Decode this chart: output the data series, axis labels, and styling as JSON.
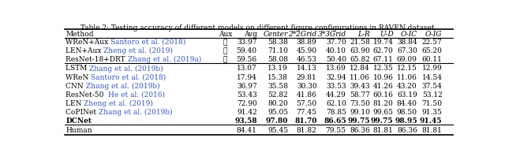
{
  "title": "Table 2: Testing accuracy of different models on different figure configurations in RAVEN dataset.",
  "columns": [
    "Method",
    "Aux",
    "Avg",
    "Center",
    "2*2Grid",
    "3*3Grid",
    "L-R",
    "U-D",
    "O-IC",
    "O-IG"
  ],
  "col_italic": [
    false,
    false,
    false,
    true,
    true,
    true,
    true,
    true,
    true,
    true
  ],
  "rows": [
    {
      "method_black": "WReN+Aux ",
      "method_blue": "Santoro et al. (2018)",
      "method_bold": false,
      "aux": "✓",
      "values": [
        "33.97",
        "58.38",
        "38.89",
        "37.70",
        "21.58",
        "19.74",
        "38.84",
        "22.57"
      ],
      "bold_vals": [
        false,
        false,
        false,
        false,
        false,
        false,
        false,
        false
      ],
      "group": 1
    },
    {
      "method_black": "LEN+Aux ",
      "method_blue": "Zheng et al. (2019)",
      "method_bold": false,
      "aux": "✓",
      "values": [
        "59.40",
        "71.10",
        "45.90",
        "40.10",
        "63.90",
        "62.70",
        "67.30",
        "65.20"
      ],
      "bold_vals": [
        false,
        false,
        false,
        false,
        false,
        false,
        false,
        false
      ],
      "group": 1
    },
    {
      "method_black": "ResNet-18+DRT ",
      "method_blue": "Zhang et al. (2019a)",
      "method_bold": false,
      "aux": "✓",
      "values": [
        "59.56",
        "58.08",
        "46.53",
        "50.40",
        "65.82",
        "67.11",
        "69.09",
        "60.11"
      ],
      "bold_vals": [
        false,
        false,
        false,
        false,
        false,
        false,
        false,
        false
      ],
      "group": 1
    },
    {
      "method_black": "LSTM ",
      "method_blue": "Zhang et al. (2019b)",
      "method_bold": false,
      "aux": "",
      "values": [
        "13.07",
        "13.19",
        "14.13",
        "13.69",
        "12.84",
        "12.35",
        "12.15",
        "12.99"
      ],
      "bold_vals": [
        false,
        false,
        false,
        false,
        false,
        false,
        false,
        false
      ],
      "group": 2
    },
    {
      "method_black": "WReN ",
      "method_blue": "Santoro et al. (2018)",
      "method_bold": false,
      "aux": "",
      "values": [
        "17.94",
        "15.38",
        "29.81",
        "32.94",
        "11.06",
        "10.96",
        "11.06",
        "14.54"
      ],
      "bold_vals": [
        false,
        false,
        false,
        false,
        false,
        false,
        false,
        false
      ],
      "group": 2
    },
    {
      "method_black": "CNN ",
      "method_blue": "Zhang et al. (2019b)",
      "method_bold": false,
      "aux": "",
      "values": [
        "36.97",
        "35.58",
        "30.30",
        "33.53",
        "39.43",
        "41.26",
        "43.20",
        "37.54"
      ],
      "bold_vals": [
        false,
        false,
        false,
        false,
        false,
        false,
        false,
        false
      ],
      "group": 2
    },
    {
      "method_black": "ResNet-50  ",
      "method_blue": "He et al. (2016)",
      "method_bold": false,
      "aux": "",
      "values": [
        "53.43",
        "52.82",
        "41.86",
        "44.29",
        "58.77",
        "60.16",
        "63.19",
        "53.12"
      ],
      "bold_vals": [
        false,
        false,
        false,
        false,
        false,
        false,
        false,
        false
      ],
      "group": 2
    },
    {
      "method_black": "LEN ",
      "method_blue": "Zheng et al. (2019)",
      "method_bold": false,
      "aux": "",
      "values": [
        "72.90",
        "80.20",
        "57.50",
        "62.10",
        "73.50",
        "81.20",
        "84.40",
        "71.50"
      ],
      "bold_vals": [
        false,
        false,
        false,
        false,
        false,
        false,
        false,
        false
      ],
      "group": 2
    },
    {
      "method_black": "CoPINet ",
      "method_blue": "Zhang et al. (2019b)",
      "method_bold": false,
      "aux": "",
      "values": [
        "91.42",
        "95.05",
        "77.45",
        "78.85",
        "99.10",
        "99.65",
        "98.50",
        "91.35"
      ],
      "bold_vals": [
        false,
        false,
        false,
        false,
        false,
        false,
        false,
        false
      ],
      "group": 2
    },
    {
      "method_black": "DCNet",
      "method_blue": "",
      "method_bold": true,
      "aux": "",
      "values": [
        "93.58",
        "97.80",
        "81.70",
        "86.65",
        "99.75",
        "99.75",
        "98.95",
        "91.45"
      ],
      "bold_vals": [
        true,
        true,
        true,
        true,
        true,
        true,
        true,
        true
      ],
      "group": 2
    },
    {
      "method_black": "Human",
      "method_blue": "",
      "method_bold": false,
      "aux": "",
      "values": [
        "84.41",
        "95.45",
        "81.82",
        "79.55",
        "86.36",
        "81.81",
        "86.36",
        "81.81"
      ],
      "bold_vals": [
        false,
        false,
        false,
        false,
        false,
        false,
        false,
        false
      ],
      "group": 3
    }
  ],
  "blue_color": "#3355CC",
  "background": "#FFFFFF",
  "fontsize": 6.5,
  "title_fontsize": 6.5
}
